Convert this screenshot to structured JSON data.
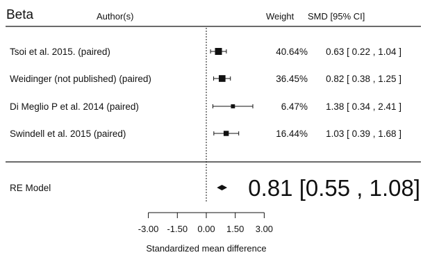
{
  "chart_data": {
    "type": "forest",
    "panel_label": "Beta",
    "columns": {
      "author": "Author(s)",
      "weight": "Weight",
      "estimate": "SMD [95% CI]"
    },
    "studies": [
      {
        "label": "Tsoi et al. 2015. (paired)",
        "weight": "40.64%",
        "ci_text": "0.63 [ 0.22 , 1.04 ]",
        "smd": 0.63,
        "lower": 0.22,
        "upper": 1.04,
        "weight_value": 40.64
      },
      {
        "label": "Weidinger (not published) (paired)",
        "weight": "36.45%",
        "ci_text": "0.82 [ 0.38 , 1.25 ]",
        "smd": 0.82,
        "lower": 0.38,
        "upper": 1.25,
        "weight_value": 36.45
      },
      {
        "label": "Di Meglio P et al. 2014 (paired)",
        "weight": "6.47%",
        "ci_text": "1.38 [ 0.34 , 2.41 ]",
        "smd": 1.38,
        "lower": 0.34,
        "upper": 2.41,
        "weight_value": 6.47
      },
      {
        "label": "Swindell et al. 2015 (paired)",
        "weight": "16.44%",
        "ci_text": "1.03 [ 0.39 , 1.68 ]",
        "smd": 1.03,
        "lower": 0.39,
        "upper": 1.68,
        "weight_value": 16.44
      }
    ],
    "summary": {
      "label": "RE Model",
      "ci_text": "0.81 [0.55 , 1.08]",
      "smd": 0.81,
      "lower": 0.55,
      "upper": 1.08
    },
    "x_axis": {
      "xlabel": "Standardized mean difference",
      "ticks": [
        -3.0,
        -1.5,
        0.0,
        1.5,
        3.0
      ],
      "tick_labels": [
        "-3.00",
        "-1.50",
        "0.00",
        "1.50",
        "3.00"
      ],
      "xlim": [
        -3.0,
        3.0
      ]
    },
    "reference_line": 0.0,
    "colors": {
      "ink": "#111111"
    }
  }
}
